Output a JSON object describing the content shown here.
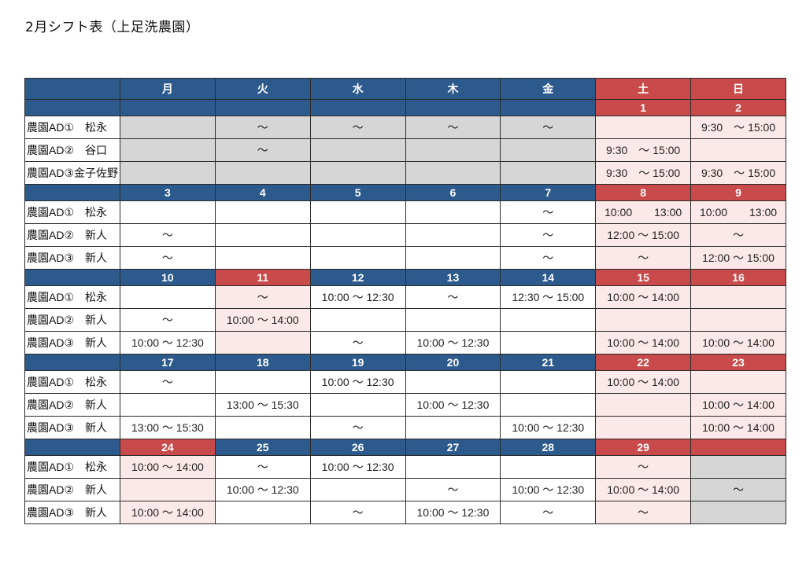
{
  "title": "2月シフト表（上足洗農園）",
  "days": [
    "月",
    "火",
    "水",
    "木",
    "金",
    "土",
    "日"
  ],
  "week0": {
    "dates": [
      "",
      "",
      "",
      "",
      "",
      "1",
      "2"
    ],
    "rows": [
      {
        "label": "農園AD①　松永",
        "cells": [
          "",
          "～",
          "～",
          "～",
          "～",
          "",
          "9:30　～ 15:00"
        ]
      },
      {
        "label": "農園AD②　谷口",
        "cells": [
          "",
          "～",
          "",
          "",
          "",
          "9:30　～ 15:00",
          ""
        ]
      },
      {
        "label": "農園AD③金子佐野",
        "cells": [
          "",
          "",
          "",
          "",
          "",
          "9:30　～ 15:00",
          "9:30　～ 15:00"
        ]
      }
    ]
  },
  "week1": {
    "dates": [
      "3",
      "4",
      "5",
      "6",
      "7",
      "8",
      "9"
    ],
    "rows": [
      {
        "label": "農園AD①　松永",
        "cells": [
          "",
          "",
          "",
          "",
          "～",
          "10:00　　13:00",
          "10:00　　13:00"
        ]
      },
      {
        "label": "農園AD②　新人",
        "cells": [
          "～",
          "",
          "",
          "",
          "～",
          "12:00 ～ 15:00",
          "～"
        ]
      },
      {
        "label": "農園AD③　新人",
        "cells": [
          "～",
          "",
          "",
          "",
          "～",
          "～",
          "12:00 ～ 15:00"
        ]
      }
    ]
  },
  "week2": {
    "dates": [
      "10",
      "11",
      "12",
      "13",
      "14",
      "15",
      "16"
    ],
    "rows": [
      {
        "label": "農園AD①　松永",
        "cells": [
          "",
          "～",
          "10:00 ～ 12:30",
          "～",
          "12:30 ～ 15:00",
          "10:00 ～ 14:00",
          ""
        ]
      },
      {
        "label": "農園AD②　新人",
        "cells": [
          "～",
          "10:00 ～ 14:00",
          "",
          "",
          "",
          "",
          ""
        ]
      },
      {
        "label": "農園AD③　新人",
        "cells": [
          "10:00 ～ 12:30",
          "",
          "～",
          "10:00 ～ 12:30",
          "",
          "10:00 ～ 14:00",
          "10:00 ～ 14:00"
        ]
      }
    ]
  },
  "week3": {
    "dates": [
      "17",
      "18",
      "19",
      "20",
      "21",
      "22",
      "23"
    ],
    "rows": [
      {
        "label": "農園AD①　松永",
        "cells": [
          "～",
          "",
          "10:00 ～ 12:30",
          "",
          "",
          "10:00 ～ 14:00",
          ""
        ]
      },
      {
        "label": "農園AD②　新人",
        "cells": [
          "",
          "13:00 ～ 15:30",
          "",
          "10:00 ～ 12:30",
          "",
          "",
          "10:00 ～ 14:00"
        ]
      },
      {
        "label": "農園AD③　新人",
        "cells": [
          "13:00 ～ 15:30",
          "",
          "～",
          "",
          "10:00 ～ 12:30",
          "",
          "10:00 ～ 14:00"
        ]
      }
    ]
  },
  "week4": {
    "dates": [
      "24",
      "25",
      "26",
      "27",
      "28",
      "29",
      ""
    ],
    "rows": [
      {
        "label": "農園AD①　松永",
        "cells": [
          "10:00 ～ 14:00",
          "～",
          "10:00 ～ 12:30",
          "",
          "",
          "～",
          ""
        ]
      },
      {
        "label": "農園AD②　新人",
        "cells": [
          "",
          "10:00 ～ 12:30",
          "",
          "～",
          "10:00 ～ 12:30",
          "10:00 ～ 14:00",
          "～"
        ]
      },
      {
        "label": "農園AD③　新人",
        "cells": [
          "10:00 ～ 14:00",
          "",
          "～",
          "10:00 ～ 12:30",
          "～",
          "～",
          ""
        ]
      }
    ]
  }
}
